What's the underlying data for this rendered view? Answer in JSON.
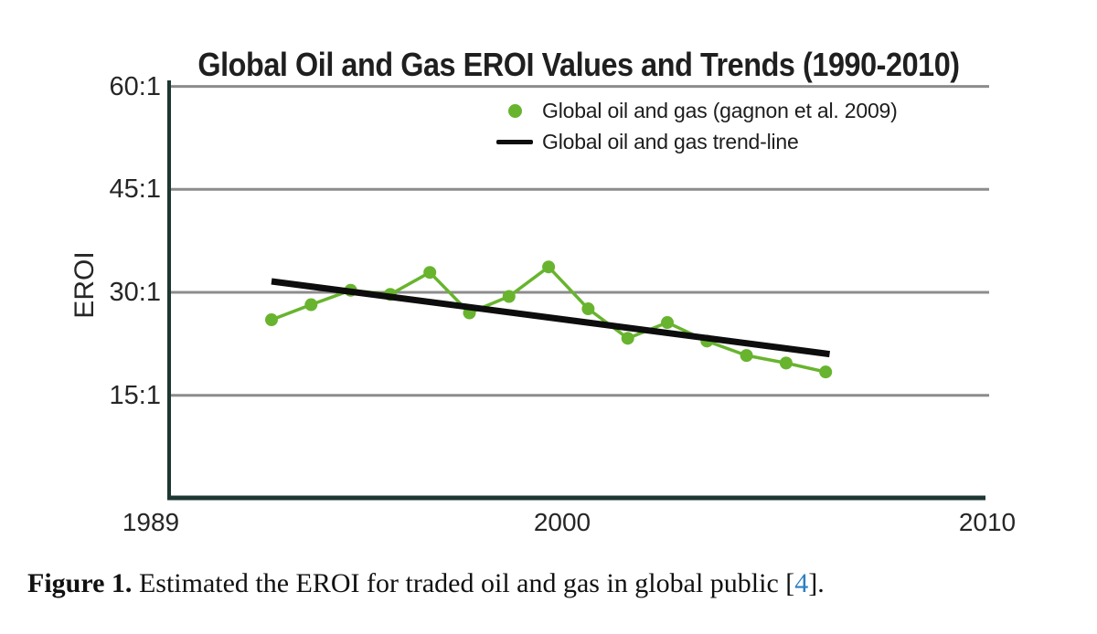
{
  "figure": {
    "caption_label": "Figure 1.",
    "caption_text": " Estimated the EROI for traded oil and gas in global public [",
    "caption_ref": "4",
    "caption_suffix": "]."
  },
  "chart_data": {
    "type": "line",
    "title": "Global Oil and Gas EROI Values and Trends (1990-2010)",
    "xlabel": "",
    "ylabel": "EROI",
    "x": [
      1992,
      1993,
      1994,
      1995,
      1996,
      1997,
      1998,
      1999,
      2000,
      2001,
      2002,
      2003,
      2004,
      2005,
      2006
    ],
    "series": [
      {
        "name": "Global oil and gas (gagnon et al. 2009)",
        "type": "line+markers",
        "color": "#68b42e",
        "values": [
          26.0,
          28.2,
          30.3,
          29.7,
          32.9,
          27.0,
          29.4,
          33.7,
          27.6,
          23.3,
          25.6,
          22.9,
          20.8,
          19.7,
          18.4
        ]
      },
      {
        "name": "Global oil and gas trend-line",
        "type": "trend",
        "color": "#0d0d0d",
        "start": {
          "x": 1992,
          "y": 31.6
        },
        "end": {
          "x": 2006.1,
          "y": 21.0
        }
      }
    ],
    "y_ticks": [
      {
        "label": "60:1",
        "value": 60
      },
      {
        "label": "45:1",
        "value": 45
      },
      {
        "label": "30:1",
        "value": 30
      },
      {
        "label": "15:1",
        "value": 15
      }
    ],
    "x_ticks": [
      {
        "label": "1989"
      },
      {
        "label": "2000"
      },
      {
        "label": "2010"
      }
    ],
    "ylim": [
      0,
      63
    ],
    "grid": "horizontal",
    "legend_position": "top-center",
    "colors": {
      "grid": "#8c8c8c",
      "axis": "#1d3632",
      "link": "#2d7fc1"
    }
  }
}
